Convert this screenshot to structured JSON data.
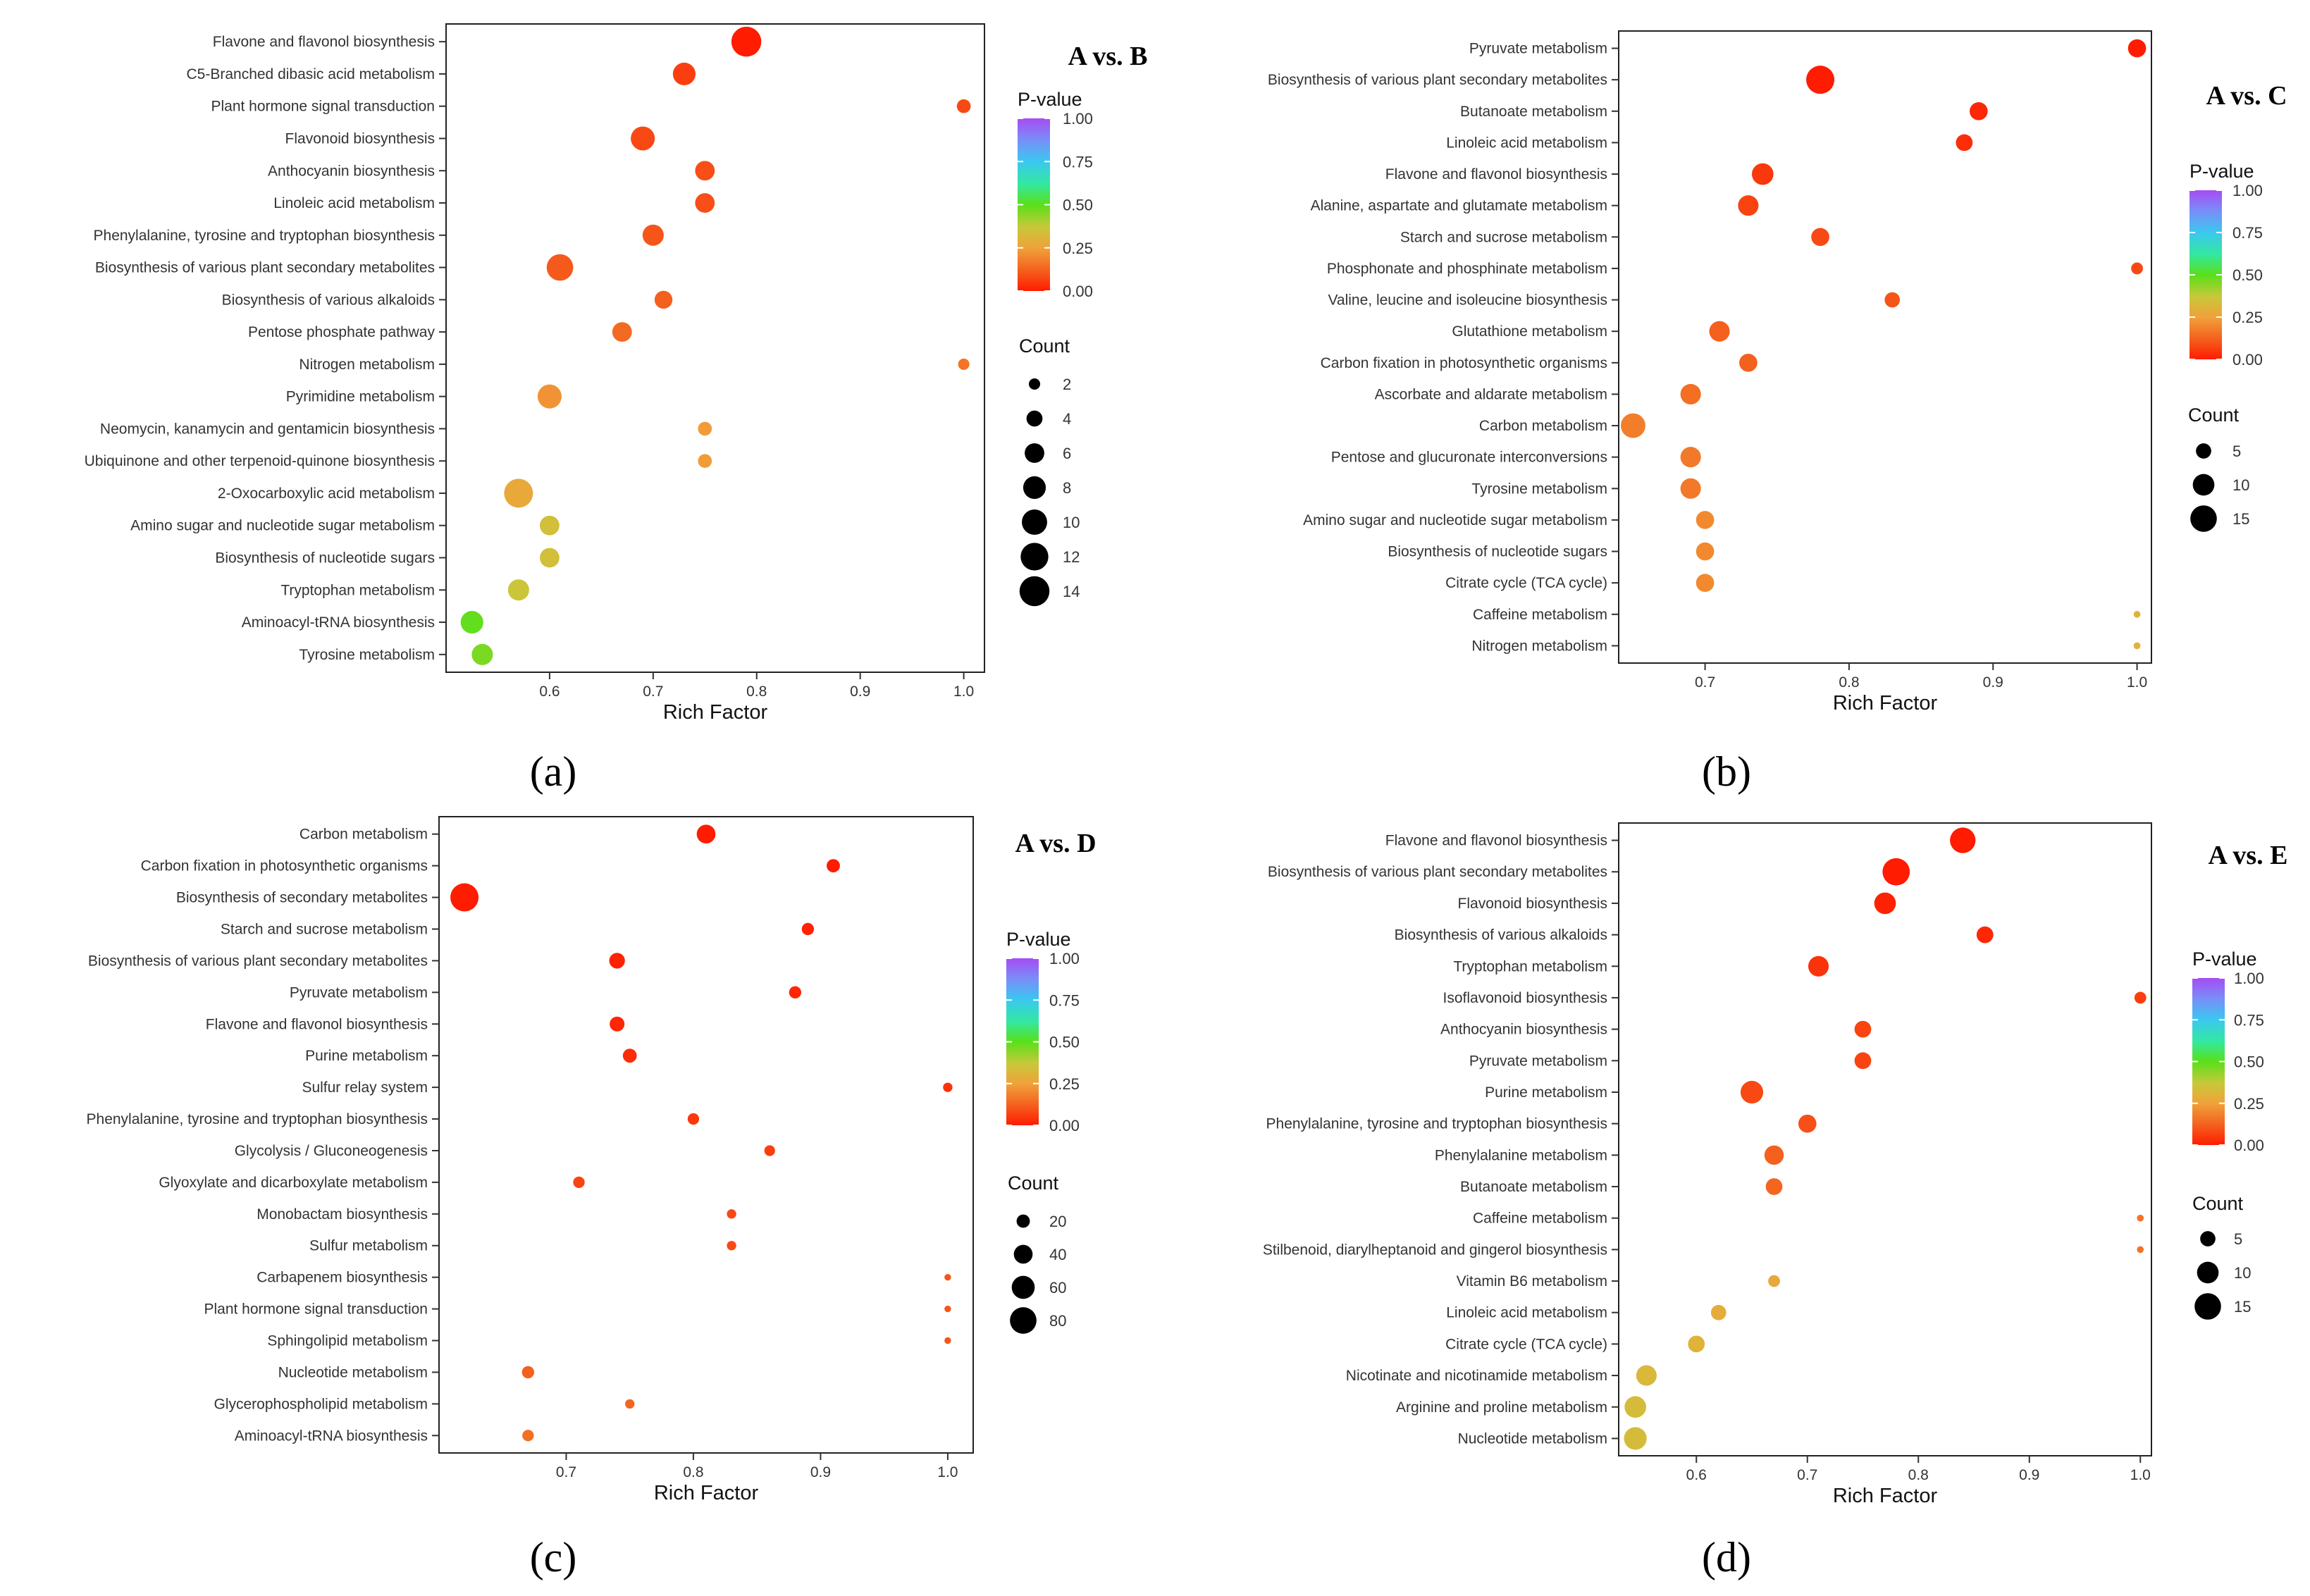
{
  "chart_data": [
    {
      "type": "scatter",
      "panel_label": "(a)",
      "comparison": "A vs. B",
      "xlabel": "Rich Factor",
      "xlim": [
        0.5,
        1.02
      ],
      "xticks": [
        0.6,
        0.7,
        0.8,
        0.9,
        1.0
      ],
      "xtick_labels": [
        "0.6",
        "0.7",
        "0.8",
        "0.9",
        "1.0"
      ],
      "color_legend_title": "P-value",
      "color_ticks": [
        "1.00",
        "0.75",
        "0.50",
        "0.25",
        "0.00"
      ],
      "size_legend_title": "Count",
      "size_legend_values": [
        2,
        4,
        6,
        8,
        10,
        12,
        14
      ],
      "size_legend_labels": [
        "2",
        "4",
        "6",
        "8",
        "10",
        "12",
        "14"
      ],
      "count_max": 15,
      "points": [
        {
          "pathway": "Flavone and flavonol biosynthesis",
          "rich_factor": 0.79,
          "count": 14,
          "p_value": 0.0
        },
        {
          "pathway": "C5-Branched dibasic acid metabolism",
          "rich_factor": 0.73,
          "count": 8,
          "p_value": 0.06
        },
        {
          "pathway": "Plant hormone signal transduction",
          "rich_factor": 1.0,
          "count": 3,
          "p_value": 0.08
        },
        {
          "pathway": "Flavonoid biosynthesis",
          "rich_factor": 0.69,
          "count": 9,
          "p_value": 0.08
        },
        {
          "pathway": "Anthocyanin biosynthesis",
          "rich_factor": 0.75,
          "count": 6,
          "p_value": 0.09
        },
        {
          "pathway": "Linoleic acid metabolism",
          "rich_factor": 0.75,
          "count": 6,
          "p_value": 0.09
        },
        {
          "pathway": "Phenylalanine, tyrosine and tryptophan biosynthesis",
          "rich_factor": 0.7,
          "count": 7,
          "p_value": 0.1
        },
        {
          "pathway": "Biosynthesis of various plant secondary metabolites",
          "rich_factor": 0.61,
          "count": 11,
          "p_value": 0.11
        },
        {
          "pathway": "Biosynthesis of various alkaloids",
          "rich_factor": 0.71,
          "count": 5,
          "p_value": 0.12
        },
        {
          "pathway": "Pentose phosphate pathway",
          "rich_factor": 0.67,
          "count": 6,
          "p_value": 0.14
        },
        {
          "pathway": "Nitrogen metabolism",
          "rich_factor": 1.0,
          "count": 2,
          "p_value": 0.16
        },
        {
          "pathway": "Pyrimidine metabolism",
          "rich_factor": 0.6,
          "count": 9,
          "p_value": 0.22
        },
        {
          "pathway": "Neomycin, kanamycin and gentamicin biosynthesis",
          "rich_factor": 0.75,
          "count": 3,
          "p_value": 0.24
        },
        {
          "pathway": "Ubiquinone and other terpenoid-quinone biosynthesis",
          "rich_factor": 0.75,
          "count": 3,
          "p_value": 0.24
        },
        {
          "pathway": "2-Oxocarboxylic acid metabolism",
          "rich_factor": 0.57,
          "count": 13,
          "p_value": 0.27
        },
        {
          "pathway": "Amino sugar and nucleotide sugar metabolism",
          "rich_factor": 0.6,
          "count": 6,
          "p_value": 0.34
        },
        {
          "pathway": "Biosynthesis of nucleotide sugars",
          "rich_factor": 0.6,
          "count": 6,
          "p_value": 0.34
        },
        {
          "pathway": "Tryptophan metabolism",
          "rich_factor": 0.57,
          "count": 7,
          "p_value": 0.36
        },
        {
          "pathway": "Aminoacyl-tRNA biosynthesis",
          "rich_factor": 0.525,
          "count": 8,
          "p_value": 0.49
        },
        {
          "pathway": "Tyrosine metabolism",
          "rich_factor": 0.535,
          "count": 7,
          "p_value": 0.46
        }
      ]
    },
    {
      "type": "scatter",
      "panel_label": "(b)",
      "comparison": "A vs. C",
      "xlabel": "Rich Factor",
      "xlim": [
        0.64,
        1.01
      ],
      "xticks": [
        0.7,
        0.8,
        0.9,
        1.0
      ],
      "xtick_labels": [
        "0.7",
        "0.8",
        "0.9",
        "1.0"
      ],
      "color_legend_title": "P-value",
      "color_ticks": [
        "1.00",
        "0.75",
        "0.50",
        "0.25",
        "0.00"
      ],
      "size_legend_title": "Count",
      "size_legend_values": [
        5,
        10,
        15
      ],
      "size_legend_labels": [
        "5",
        "10",
        "15"
      ],
      "count_max": 17,
      "points": [
        {
          "pathway": "Pyruvate metabolism",
          "rich_factor": 1.0,
          "count": 7,
          "p_value": 0.0
        },
        {
          "pathway": "Biosynthesis of various plant secondary metabolites",
          "rich_factor": 0.78,
          "count": 17,
          "p_value": 0.0
        },
        {
          "pathway": "Butanoate metabolism",
          "rich_factor": 0.89,
          "count": 7,
          "p_value": 0.02
        },
        {
          "pathway": "Linoleic acid metabolism",
          "rich_factor": 0.88,
          "count": 6,
          "p_value": 0.03
        },
        {
          "pathway": "Flavone and flavonol biosynthesis",
          "rich_factor": 0.74,
          "count": 10,
          "p_value": 0.05
        },
        {
          "pathway": "Alanine, aspartate and glutamate metabolism",
          "rich_factor": 0.73,
          "count": 9,
          "p_value": 0.07
        },
        {
          "pathway": "Starch and sucrose metabolism",
          "rich_factor": 0.78,
          "count": 7,
          "p_value": 0.08
        },
        {
          "pathway": "Phosphonate and phosphinate metabolism",
          "rich_factor": 1.0,
          "count": 3,
          "p_value": 0.08
        },
        {
          "pathway": "Valine, leucine and isoleucine biosynthesis",
          "rich_factor": 0.83,
          "count": 5,
          "p_value": 0.1
        },
        {
          "pathway": "Glutathione metabolism",
          "rich_factor": 0.71,
          "count": 9,
          "p_value": 0.12
        },
        {
          "pathway": "Carbon fixation in photosynthetic organisms",
          "rich_factor": 0.73,
          "count": 7,
          "p_value": 0.12
        },
        {
          "pathway": "Ascorbate and aldarate metabolism",
          "rich_factor": 0.69,
          "count": 9,
          "p_value": 0.15
        },
        {
          "pathway": "Carbon metabolism",
          "rich_factor": 0.65,
          "count": 13,
          "p_value": 0.18
        },
        {
          "pathway": "Pentose and glucuronate interconversions",
          "rich_factor": 0.69,
          "count": 9,
          "p_value": 0.17
        },
        {
          "pathway": "Tyrosine metabolism",
          "rich_factor": 0.69,
          "count": 9,
          "p_value": 0.17
        },
        {
          "pathway": "Amino sugar and nucleotide sugar metabolism",
          "rich_factor": 0.7,
          "count": 7,
          "p_value": 0.2
        },
        {
          "pathway": "Biosynthesis of nucleotide sugars",
          "rich_factor": 0.7,
          "count": 7,
          "p_value": 0.2
        },
        {
          "pathway": "Citrate cycle (TCA cycle)",
          "rich_factor": 0.7,
          "count": 7,
          "p_value": 0.2
        },
        {
          "pathway": "Caffeine metabolism",
          "rich_factor": 1.0,
          "count": 1,
          "p_value": 0.3
        },
        {
          "pathway": "Nitrogen metabolism",
          "rich_factor": 1.0,
          "count": 1,
          "p_value": 0.3
        }
      ]
    },
    {
      "type": "scatter",
      "panel_label": "(c)",
      "comparison": "A vs. D",
      "xlabel": "Rich Factor",
      "xlim": [
        0.6,
        1.02
      ],
      "xticks": [
        0.7,
        0.8,
        0.9,
        1.0
      ],
      "xtick_labels": [
        "0.7",
        "0.8",
        "0.9",
        "1.0"
      ],
      "color_legend_title": "P-value",
      "color_ticks": [
        "1.00",
        "0.75",
        "0.50",
        "0.25",
        "0.00"
      ],
      "size_legend_title": "Count",
      "size_legend_values": [
        20,
        40,
        60,
        80
      ],
      "size_legend_labels": [
        "20",
        "40",
        "60",
        "80"
      ],
      "count_max": 90,
      "points": [
        {
          "pathway": "Carbon metabolism",
          "rich_factor": 0.81,
          "count": 40,
          "p_value": 0.0
        },
        {
          "pathway": "Carbon fixation in photosynthetic organisms",
          "rich_factor": 0.91,
          "count": 20,
          "p_value": 0.0
        },
        {
          "pathway": "Biosynthesis of secondary metabolites",
          "rich_factor": 0.62,
          "count": 90,
          "p_value": 0.0
        },
        {
          "pathway": "Starch and sucrose metabolism",
          "rich_factor": 0.89,
          "count": 17,
          "p_value": 0.01
        },
        {
          "pathway": "Biosynthesis of various plant secondary metabolites",
          "rich_factor": 0.74,
          "count": 28,
          "p_value": 0.01
        },
        {
          "pathway": "Pyruvate metabolism",
          "rich_factor": 0.88,
          "count": 17,
          "p_value": 0.02
        },
        {
          "pathway": "Flavone and flavonol biosynthesis",
          "rich_factor": 0.74,
          "count": 25,
          "p_value": 0.02
        },
        {
          "pathway": "Purine metabolism",
          "rich_factor": 0.75,
          "count": 22,
          "p_value": 0.03
        },
        {
          "pathway": "Sulfur relay system",
          "rich_factor": 1.0,
          "count": 10,
          "p_value": 0.04
        },
        {
          "pathway": "Phenylalanine, tyrosine and tryptophan biosynthesis",
          "rich_factor": 0.8,
          "count": 15,
          "p_value": 0.05
        },
        {
          "pathway": "Glycolysis / Gluconeogenesis",
          "rich_factor": 0.86,
          "count": 13,
          "p_value": 0.06
        },
        {
          "pathway": "Glyoxylate and dicarboxylate metabolism",
          "rich_factor": 0.71,
          "count": 15,
          "p_value": 0.07
        },
        {
          "pathway": "Monobactam biosynthesis",
          "rich_factor": 0.83,
          "count": 10,
          "p_value": 0.08
        },
        {
          "pathway": "Sulfur metabolism",
          "rich_factor": 0.83,
          "count": 10,
          "p_value": 0.08
        },
        {
          "pathway": "Carbapenem biosynthesis",
          "rich_factor": 1.0,
          "count": 5,
          "p_value": 0.1
        },
        {
          "pathway": "Plant hormone signal transduction",
          "rich_factor": 1.0,
          "count": 5,
          "p_value": 0.1
        },
        {
          "pathway": "Sphingolipid metabolism",
          "rich_factor": 1.0,
          "count": 5,
          "p_value": 0.1
        },
        {
          "pathway": "Nucleotide metabolism",
          "rich_factor": 0.67,
          "count": 17,
          "p_value": 0.12
        },
        {
          "pathway": "Glycerophospholipid metabolism",
          "rich_factor": 0.75,
          "count": 10,
          "p_value": 0.13
        },
        {
          "pathway": "Aminoacyl-tRNA biosynthesis",
          "rich_factor": 0.67,
          "count": 15,
          "p_value": 0.15
        }
      ]
    },
    {
      "type": "scatter",
      "panel_label": "(d)",
      "comparison": "A vs. E",
      "xlabel": "Rich Factor",
      "xlim": [
        0.53,
        1.01
      ],
      "xticks": [
        0.6,
        0.7,
        0.8,
        0.9,
        1.0
      ],
      "xtick_labels": [
        "0.6",
        "0.7",
        "0.8",
        "0.9",
        "1.0"
      ],
      "color_legend_title": "P-value",
      "color_ticks": [
        "1.00",
        "0.75",
        "0.50",
        "0.25",
        "0.00"
      ],
      "size_legend_title": "Count",
      "size_legend_values": [
        5,
        10,
        15
      ],
      "size_legend_labels": [
        "5",
        "10",
        "15"
      ],
      "count_max": 17,
      "points": [
        {
          "pathway": "Flavone and flavonol biosynthesis",
          "rich_factor": 0.84,
          "count": 14,
          "p_value": 0.0
        },
        {
          "pathway": "Biosynthesis of various plant secondary metabolites",
          "rich_factor": 0.78,
          "count": 16,
          "p_value": 0.0
        },
        {
          "pathway": "Flavonoid biosynthesis",
          "rich_factor": 0.77,
          "count": 10,
          "p_value": 0.01
        },
        {
          "pathway": "Biosynthesis of various alkaloids",
          "rich_factor": 0.86,
          "count": 6,
          "p_value": 0.02
        },
        {
          "pathway": "Tryptophan metabolism",
          "rich_factor": 0.71,
          "count": 9,
          "p_value": 0.04
        },
        {
          "pathway": "Isoflavonoid biosynthesis",
          "rich_factor": 1.0,
          "count": 3,
          "p_value": 0.06
        },
        {
          "pathway": "Anthocyanin biosynthesis",
          "rich_factor": 0.75,
          "count": 6,
          "p_value": 0.07
        },
        {
          "pathway": "Pyruvate metabolism",
          "rich_factor": 0.75,
          "count": 6,
          "p_value": 0.07
        },
        {
          "pathway": "Purine metabolism",
          "rich_factor": 0.65,
          "count": 11,
          "p_value": 0.08
        },
        {
          "pathway": "Phenylalanine, tyrosine and tryptophan biosynthesis",
          "rich_factor": 0.7,
          "count": 7,
          "p_value": 0.09
        },
        {
          "pathway": "Phenylalanine metabolism",
          "rich_factor": 0.67,
          "count": 8,
          "p_value": 0.12
        },
        {
          "pathway": "Butanoate metabolism",
          "rich_factor": 0.67,
          "count": 6,
          "p_value": 0.13
        },
        {
          "pathway": "Caffeine metabolism",
          "rich_factor": 1.0,
          "count": 1,
          "p_value": 0.16
        },
        {
          "pathway": "Stilbenoid, diarylheptanoid and gingerol biosynthesis",
          "rich_factor": 1.0,
          "count": 1,
          "p_value": 0.16
        },
        {
          "pathway": "Vitamin B6 metabolism",
          "rich_factor": 0.67,
          "count": 3,
          "p_value": 0.27
        },
        {
          "pathway": "Linoleic acid metabolism",
          "rich_factor": 0.62,
          "count": 5,
          "p_value": 0.28
        },
        {
          "pathway": "Citrate cycle (TCA cycle)",
          "rich_factor": 0.6,
          "count": 6,
          "p_value": 0.3
        },
        {
          "pathway": "Nicotinate and nicotinamide metabolism",
          "rich_factor": 0.555,
          "count": 9,
          "p_value": 0.32
        },
        {
          "pathway": "Arginine and proline metabolism",
          "rich_factor": 0.545,
          "count": 10,
          "p_value": 0.33
        },
        {
          "pathway": "Nucleotide metabolism",
          "rich_factor": 0.545,
          "count": 11,
          "p_value": 0.33
        }
      ]
    }
  ]
}
